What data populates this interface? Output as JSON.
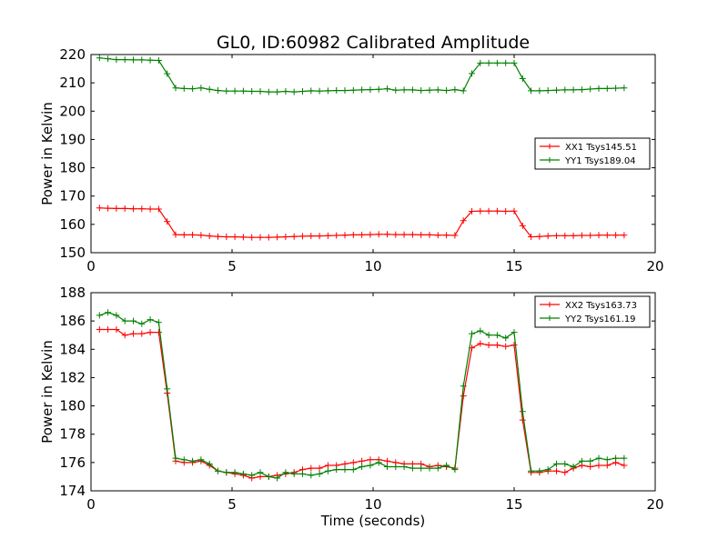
{
  "figure": {
    "title": "GL0, ID:60982 Calibrated Amplitude"
  },
  "chart_data": [
    {
      "type": "line",
      "title": "GL0, ID:60982 Calibrated Amplitude",
      "xlabel": "",
      "ylabel": "Power in Kelvin",
      "xlim": [
        0,
        20
      ],
      "ylim": [
        150,
        220
      ],
      "xticks": [
        0,
        5,
        10,
        15,
        20
      ],
      "yticks": [
        150,
        160,
        170,
        180,
        190,
        200,
        210,
        220
      ],
      "grid": false,
      "legend_position": "center-right",
      "x": [
        0.3,
        0.6,
        0.9,
        1.2,
        1.5,
        1.8,
        2.1,
        2.4,
        2.7,
        3.0,
        3.3,
        3.6,
        3.9,
        4.2,
        4.5,
        4.8,
        5.1,
        5.4,
        5.7,
        6.0,
        6.3,
        6.6,
        6.9,
        7.2,
        7.5,
        7.8,
        8.1,
        8.4,
        8.7,
        9.0,
        9.3,
        9.6,
        9.9,
        10.2,
        10.5,
        10.8,
        11.1,
        11.4,
        11.7,
        12.0,
        12.3,
        12.6,
        12.9,
        13.2,
        13.5,
        13.8,
        14.1,
        14.4,
        14.7,
        15.0,
        15.3,
        15.6,
        15.9,
        16.2,
        16.5,
        16.8,
        17.1,
        17.4,
        17.7,
        18.0,
        18.3,
        18.6,
        18.9
      ],
      "series": [
        {
          "name": "XX1 Tsys145.51",
          "color": "#ff0000",
          "values": [
            165.8,
            165.7,
            165.6,
            165.6,
            165.5,
            165.5,
            165.4,
            165.4,
            161.0,
            156.4,
            156.3,
            156.3,
            156.2,
            155.9,
            155.7,
            155.6,
            155.6,
            155.5,
            155.4,
            155.4,
            155.4,
            155.5,
            155.6,
            155.7,
            155.8,
            155.9,
            155.9,
            156.0,
            156.1,
            156.2,
            156.3,
            156.3,
            156.4,
            156.5,
            156.5,
            156.4,
            156.4,
            156.4,
            156.3,
            156.3,
            156.2,
            156.2,
            156.1,
            161.3,
            164.6,
            164.7,
            164.7,
            164.7,
            164.6,
            164.7,
            159.5,
            155.6,
            155.7,
            155.9,
            156.0,
            156.0,
            156.0,
            156.1,
            156.1,
            156.2,
            156.2,
            156.2,
            156.2
          ]
        },
        {
          "name": "YY1 Tsys189.04",
          "color": "#008000",
          "values": [
            218.8,
            218.5,
            218.2,
            218.2,
            218.1,
            218.1,
            218.0,
            217.9,
            213.2,
            208.2,
            208.0,
            207.9,
            208.2,
            207.7,
            207.3,
            207.1,
            207.1,
            207.1,
            207.0,
            207.0,
            206.8,
            206.8,
            207.0,
            206.8,
            207.0,
            207.2,
            207.1,
            207.2,
            207.3,
            207.3,
            207.4,
            207.5,
            207.6,
            207.7,
            207.9,
            207.4,
            207.5,
            207.5,
            207.3,
            207.4,
            207.5,
            207.3,
            207.6,
            207.2,
            213.3,
            217.0,
            217.0,
            217.0,
            217.0,
            217.0,
            211.5,
            207.2,
            207.2,
            207.3,
            207.4,
            207.5,
            207.5,
            207.6,
            207.8,
            208.0,
            208.0,
            208.1,
            208.2
          ]
        }
      ]
    },
    {
      "type": "line",
      "title": "",
      "xlabel": "Time (seconds)",
      "ylabel": "Power in Kelvin",
      "xlim": [
        0,
        20
      ],
      "ylim": [
        174,
        188
      ],
      "xticks": [
        0,
        5,
        10,
        15,
        20
      ],
      "yticks": [
        174,
        176,
        178,
        180,
        182,
        184,
        186,
        188
      ],
      "grid": false,
      "legend_position": "top-right",
      "x": [
        0.3,
        0.6,
        0.9,
        1.2,
        1.5,
        1.8,
        2.1,
        2.4,
        2.7,
        3.0,
        3.3,
        3.6,
        3.9,
        4.2,
        4.5,
        4.8,
        5.1,
        5.4,
        5.7,
        6.0,
        6.3,
        6.6,
        6.9,
        7.2,
        7.5,
        7.8,
        8.1,
        8.4,
        8.7,
        9.0,
        9.3,
        9.6,
        9.9,
        10.2,
        10.5,
        10.8,
        11.1,
        11.4,
        11.7,
        12.0,
        12.3,
        12.6,
        12.9,
        13.2,
        13.5,
        13.8,
        14.1,
        14.4,
        14.7,
        15.0,
        15.3,
        15.6,
        15.9,
        16.2,
        16.5,
        16.8,
        17.1,
        17.4,
        17.7,
        18.0,
        18.3,
        18.6,
        18.9
      ],
      "series": [
        {
          "name": "XX2 Tsys163.73",
          "color": "#ff0000",
          "values": [
            185.4,
            185.4,
            185.4,
            185.0,
            185.1,
            185.1,
            185.2,
            185.2,
            180.9,
            176.1,
            176.0,
            176.0,
            176.1,
            175.8,
            175.4,
            175.3,
            175.2,
            175.1,
            174.9,
            175.0,
            175.0,
            175.1,
            175.2,
            175.3,
            175.5,
            175.6,
            175.6,
            175.8,
            175.8,
            175.9,
            176.0,
            176.1,
            176.2,
            176.2,
            176.1,
            176.0,
            175.9,
            175.9,
            175.9,
            175.7,
            175.8,
            175.7,
            175.6,
            180.7,
            184.1,
            184.4,
            184.3,
            184.3,
            184.2,
            184.3,
            179.0,
            175.3,
            175.3,
            175.4,
            175.4,
            175.3,
            175.6,
            175.8,
            175.7,
            175.8,
            175.8,
            176.0,
            175.8
          ]
        },
        {
          "name": "YY2 Tsys161.19",
          "color": "#008000",
          "values": [
            186.4,
            186.6,
            186.4,
            186.0,
            186.0,
            185.8,
            186.1,
            185.9,
            181.2,
            176.3,
            176.2,
            176.1,
            176.2,
            175.9,
            175.4,
            175.3,
            175.3,
            175.2,
            175.1,
            175.3,
            175.0,
            174.9,
            175.3,
            175.2,
            175.2,
            175.1,
            175.2,
            175.4,
            175.5,
            175.5,
            175.5,
            175.7,
            175.8,
            176.0,
            175.7,
            175.7,
            175.7,
            175.6,
            175.6,
            175.6,
            175.6,
            175.8,
            175.5,
            181.4,
            185.1,
            185.3,
            185.0,
            185.0,
            184.8,
            185.2,
            179.6,
            175.4,
            175.4,
            175.5,
            175.9,
            175.9,
            175.7,
            176.1,
            176.1,
            176.3,
            176.2,
            176.3,
            176.3
          ]
        }
      ]
    }
  ]
}
